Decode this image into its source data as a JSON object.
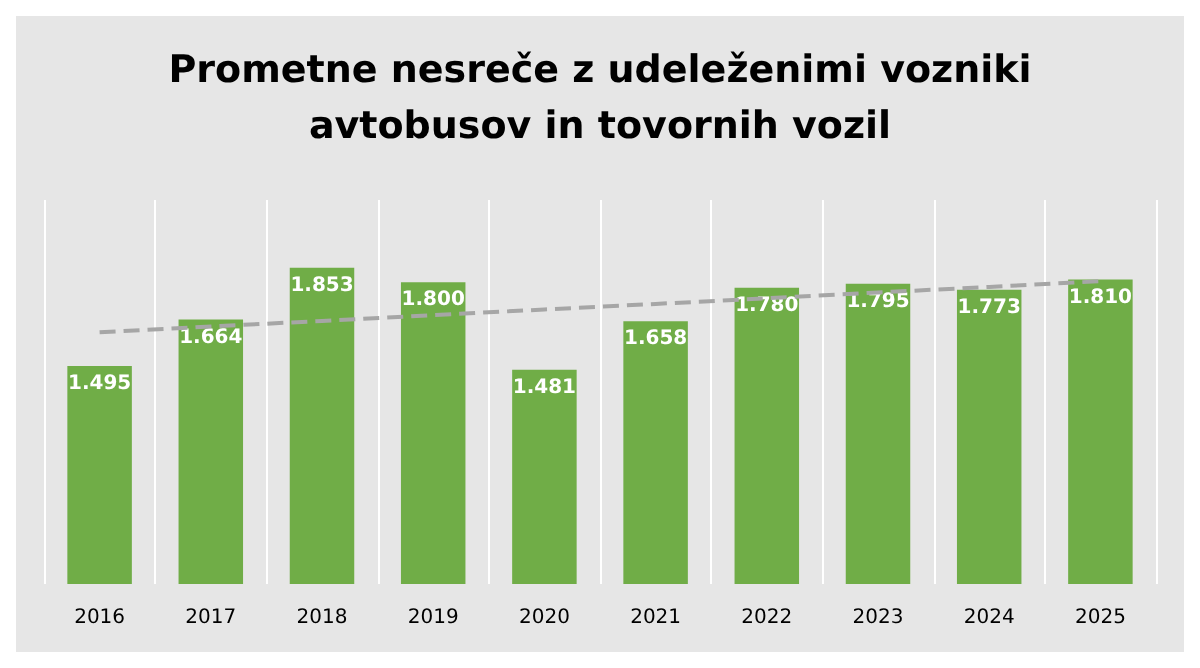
{
  "chart_data": {
    "type": "bar",
    "title": "Prometne nesreče z udeleženimi vozniki\navtobusov in tovornih vozil",
    "categories": [
      "2016",
      "2017",
      "2018",
      "2019",
      "2020",
      "2021",
      "2022",
      "2023",
      "2024",
      "2025"
    ],
    "series": [
      {
        "color": "#70ad47",
        "values": [
          1495,
          1664,
          1853,
          1800,
          1481,
          1658,
          1780,
          1795,
          1773,
          1810
        ],
        "value_labels": [
          "1.495",
          "1.664",
          "1.853",
          "1.800",
          "1.481",
          "1.658",
          "1.780",
          "1.795",
          "1.773",
          "1.810"
        ]
      },
      {
        "type": "line",
        "values": [
          1618,
          1639,
          1659,
          1680,
          1701,
          1721,
          1742,
          1763,
          1783,
          1804
        ],
        "color": "#a6a6a6",
        "line_style": "dashed",
        "marker": "none"
      }
    ],
    "ylim": [
      700,
      2100
    ],
    "grid": "x",
    "tick_labels": "x"
  }
}
